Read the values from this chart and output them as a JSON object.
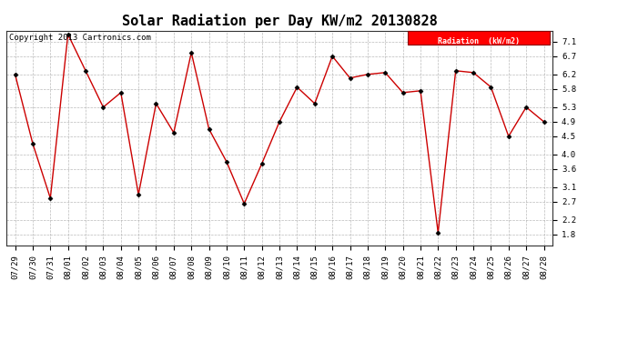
{
  "title": "Solar Radiation per Day KW/m2 20130828",
  "copyright": "Copyright 2013 Cartronics.com",
  "legend_label": "Radiation  (kW/m2)",
  "x_labels": [
    "07/29",
    "07/30",
    "07/31",
    "08/01",
    "08/02",
    "08/03",
    "08/04",
    "08/05",
    "08/06",
    "08/07",
    "08/08",
    "08/09",
    "08/10",
    "08/11",
    "08/12",
    "08/13",
    "08/14",
    "08/15",
    "08/16",
    "08/17",
    "08/18",
    "08/19",
    "08/20",
    "08/21",
    "08/22",
    "08/23",
    "08/24",
    "08/25",
    "08/26",
    "08/27",
    "08/28"
  ],
  "values": [
    6.2,
    4.3,
    2.8,
    7.3,
    6.3,
    5.3,
    5.7,
    2.9,
    5.4,
    4.6,
    6.8,
    4.7,
    3.8,
    2.65,
    3.75,
    4.9,
    5.85,
    5.4,
    6.7,
    6.1,
    6.2,
    6.25,
    5.7,
    5.75,
    1.85,
    6.3,
    6.25,
    5.85,
    4.5,
    5.3,
    4.9
  ],
  "ylim": [
    1.5,
    7.4
  ],
  "yticks": [
    1.8,
    2.2,
    2.7,
    3.1,
    3.6,
    4.0,
    4.5,
    4.9,
    5.3,
    5.8,
    6.2,
    6.7,
    7.1
  ],
  "line_color": "#cc0000",
  "marker_color": "#000000",
  "bg_color": "#ffffff",
  "grid_color": "#aaaaaa",
  "title_fontsize": 11,
  "tick_fontsize": 6.5,
  "copyright_fontsize": 6.5
}
